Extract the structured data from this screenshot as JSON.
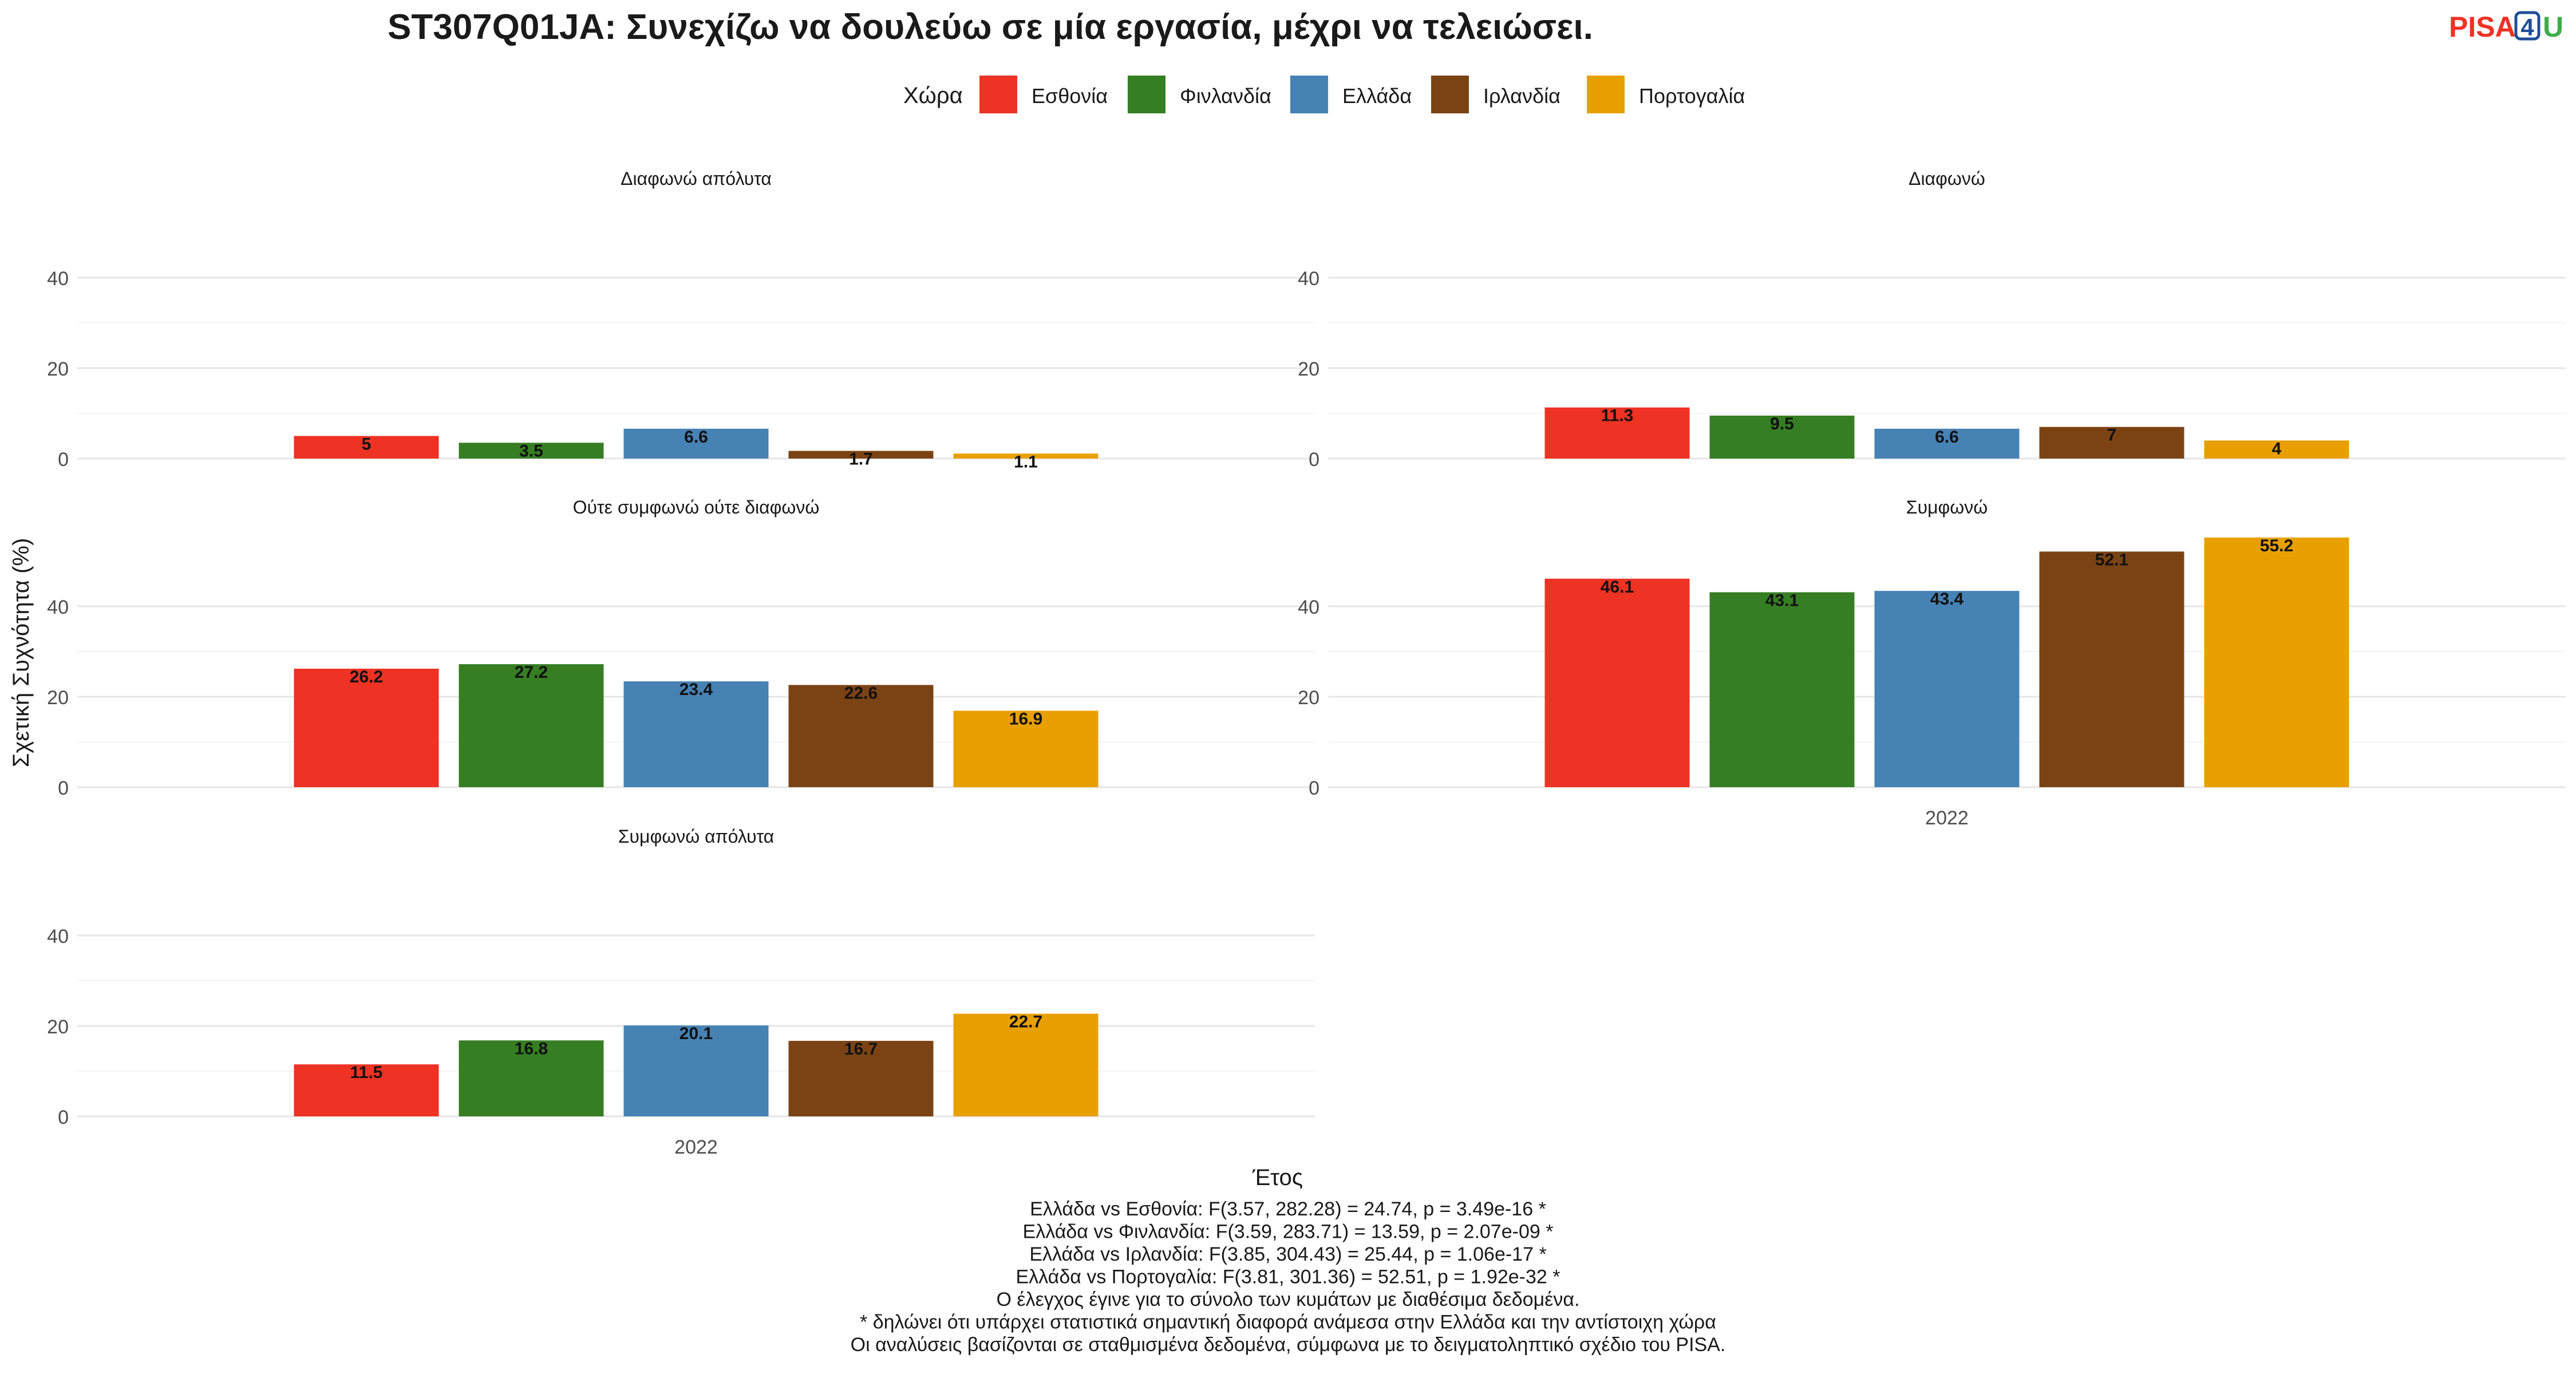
{
  "title": "ST307Q01JA: Συνεχίζω να δουλεύω σε μία εργασία, μέχρι να τελειώσει.",
  "logo": {
    "part1": "PISA",
    "part2": "4",
    "part3": "U",
    "color1": "#EE3224",
    "color2": "#1F4E96",
    "color3": "#3DAE49"
  },
  "legend": {
    "title": "Χώρα",
    "items": [
      {
        "name": "Εσθονία",
        "color": "#EE3224"
      },
      {
        "name": "Φινλανδία",
        "color": "#367E23"
      },
      {
        "name": "Ελλάδα",
        "color": "#4682B4"
      },
      {
        "name": "Ιρλανδία",
        "color": "#7B4314"
      },
      {
        "name": "Πορτογαλία",
        "color": "#E8A000"
      }
    ]
  },
  "chart_data": {
    "type": "bar",
    "xlabel": "Έτος",
    "ylabel": "Σχετική Συχνότητα (%)",
    "ylim": [
      0,
      50
    ],
    "yticks": [
      0,
      20,
      40
    ],
    "categories": [
      "2022"
    ],
    "grid": true,
    "legend_position": "top",
    "panels": [
      {
        "title": "Διαφωνώ απόλυτα",
        "values": [
          5,
          3.5,
          6.6,
          1.7,
          1.1
        ],
        "labels": [
          "5",
          "3.5",
          "6.6",
          "1.7",
          "1.1"
        ]
      },
      {
        "title": "Διαφωνώ",
        "values": [
          11.3,
          9.5,
          6.6,
          7,
          4
        ],
        "labels": [
          "11.3",
          "9.5",
          "6.6",
          "7",
          "4"
        ]
      },
      {
        "title": "Ούτε συμφωνώ ούτε διαφωνώ",
        "values": [
          26.2,
          27.2,
          23.4,
          22.6,
          16.9
        ],
        "labels": [
          "26.2",
          "27.2",
          "23.4",
          "22.6",
          "16.9"
        ]
      },
      {
        "title": "Συμφωνώ",
        "values": [
          46.1,
          43.1,
          43.4,
          52.1,
          55.2
        ],
        "labels": [
          "46.1",
          "43.1",
          "43.4",
          "52.1",
          "55.2"
        ]
      },
      {
        "title": "Συμφωνώ απόλυτα",
        "values": [
          11.5,
          16.8,
          20.1,
          16.7,
          22.7
        ],
        "labels": [
          "11.5",
          "16.8",
          "20.1",
          "16.7",
          "22.7"
        ]
      }
    ]
  },
  "footnotes": [
    "Ελλάδα vs Εσθονία: F(3.57, 282.28) = 24.74, p = 3.49e-16 *",
    "Ελλάδα vs Φινλανδία: F(3.59, 283.71) = 13.59, p = 2.07e-09 *",
    "Ελλάδα vs Ιρλανδία: F(3.85, 304.43) = 25.44, p = 1.06e-17 *",
    "Ελλάδα vs Πορτογαλία: F(3.81, 301.36) = 52.51, p = 1.92e-32 *",
    "Ο έλεγχος έγινε για το σύνολο των κυμάτων με διαθέσιμα δεδομένα.",
    "* δηλώνει ότι υπάρχει στατιστικά σημαντική διαφορά ανάμεσα στην Ελλάδα και την αντίστοιχη χώρα",
    "Οι αναλύσεις βασίζονται σε σταθμισμένα δεδομένα, σύμφωνα με το δειγματοληπτικό σχέδιο του PISA."
  ]
}
